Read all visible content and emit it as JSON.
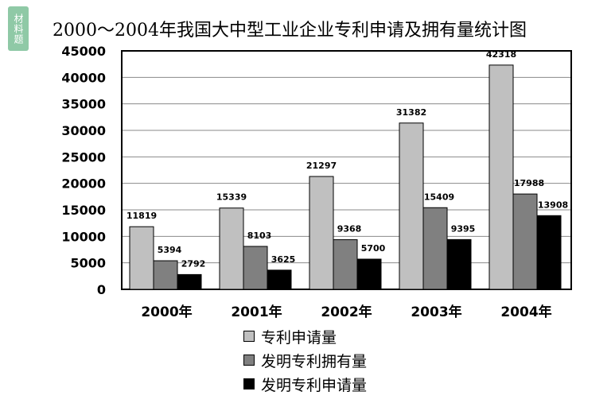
{
  "badge": {
    "label": "材料题"
  },
  "chart_data": {
    "type": "bar",
    "title": "2000～2004年我国大中型工业企业专利申请及拥有量统计图",
    "categories": [
      "2000年",
      "2001年",
      "2002年",
      "2003年",
      "2004年"
    ],
    "series": [
      {
        "name": "专利申请量",
        "color": "#c0c0c0",
        "values": [
          11819,
          15339,
          21297,
          31382,
          42318
        ]
      },
      {
        "name": "发明专利拥有量",
        "color": "#808080",
        "values": [
          5394,
          8103,
          9368,
          15409,
          17988
        ]
      },
      {
        "name": "发明专利申请量",
        "color": "#000000",
        "values": [
          2792,
          3625,
          5700,
          9395,
          13908
        ]
      }
    ],
    "yticks": [
      0,
      5000,
      10000,
      15000,
      20000,
      25000,
      30000,
      35000,
      40000,
      45000
    ],
    "ylim": [
      0,
      45000
    ],
    "grid": true,
    "legend_position": "bottom"
  }
}
